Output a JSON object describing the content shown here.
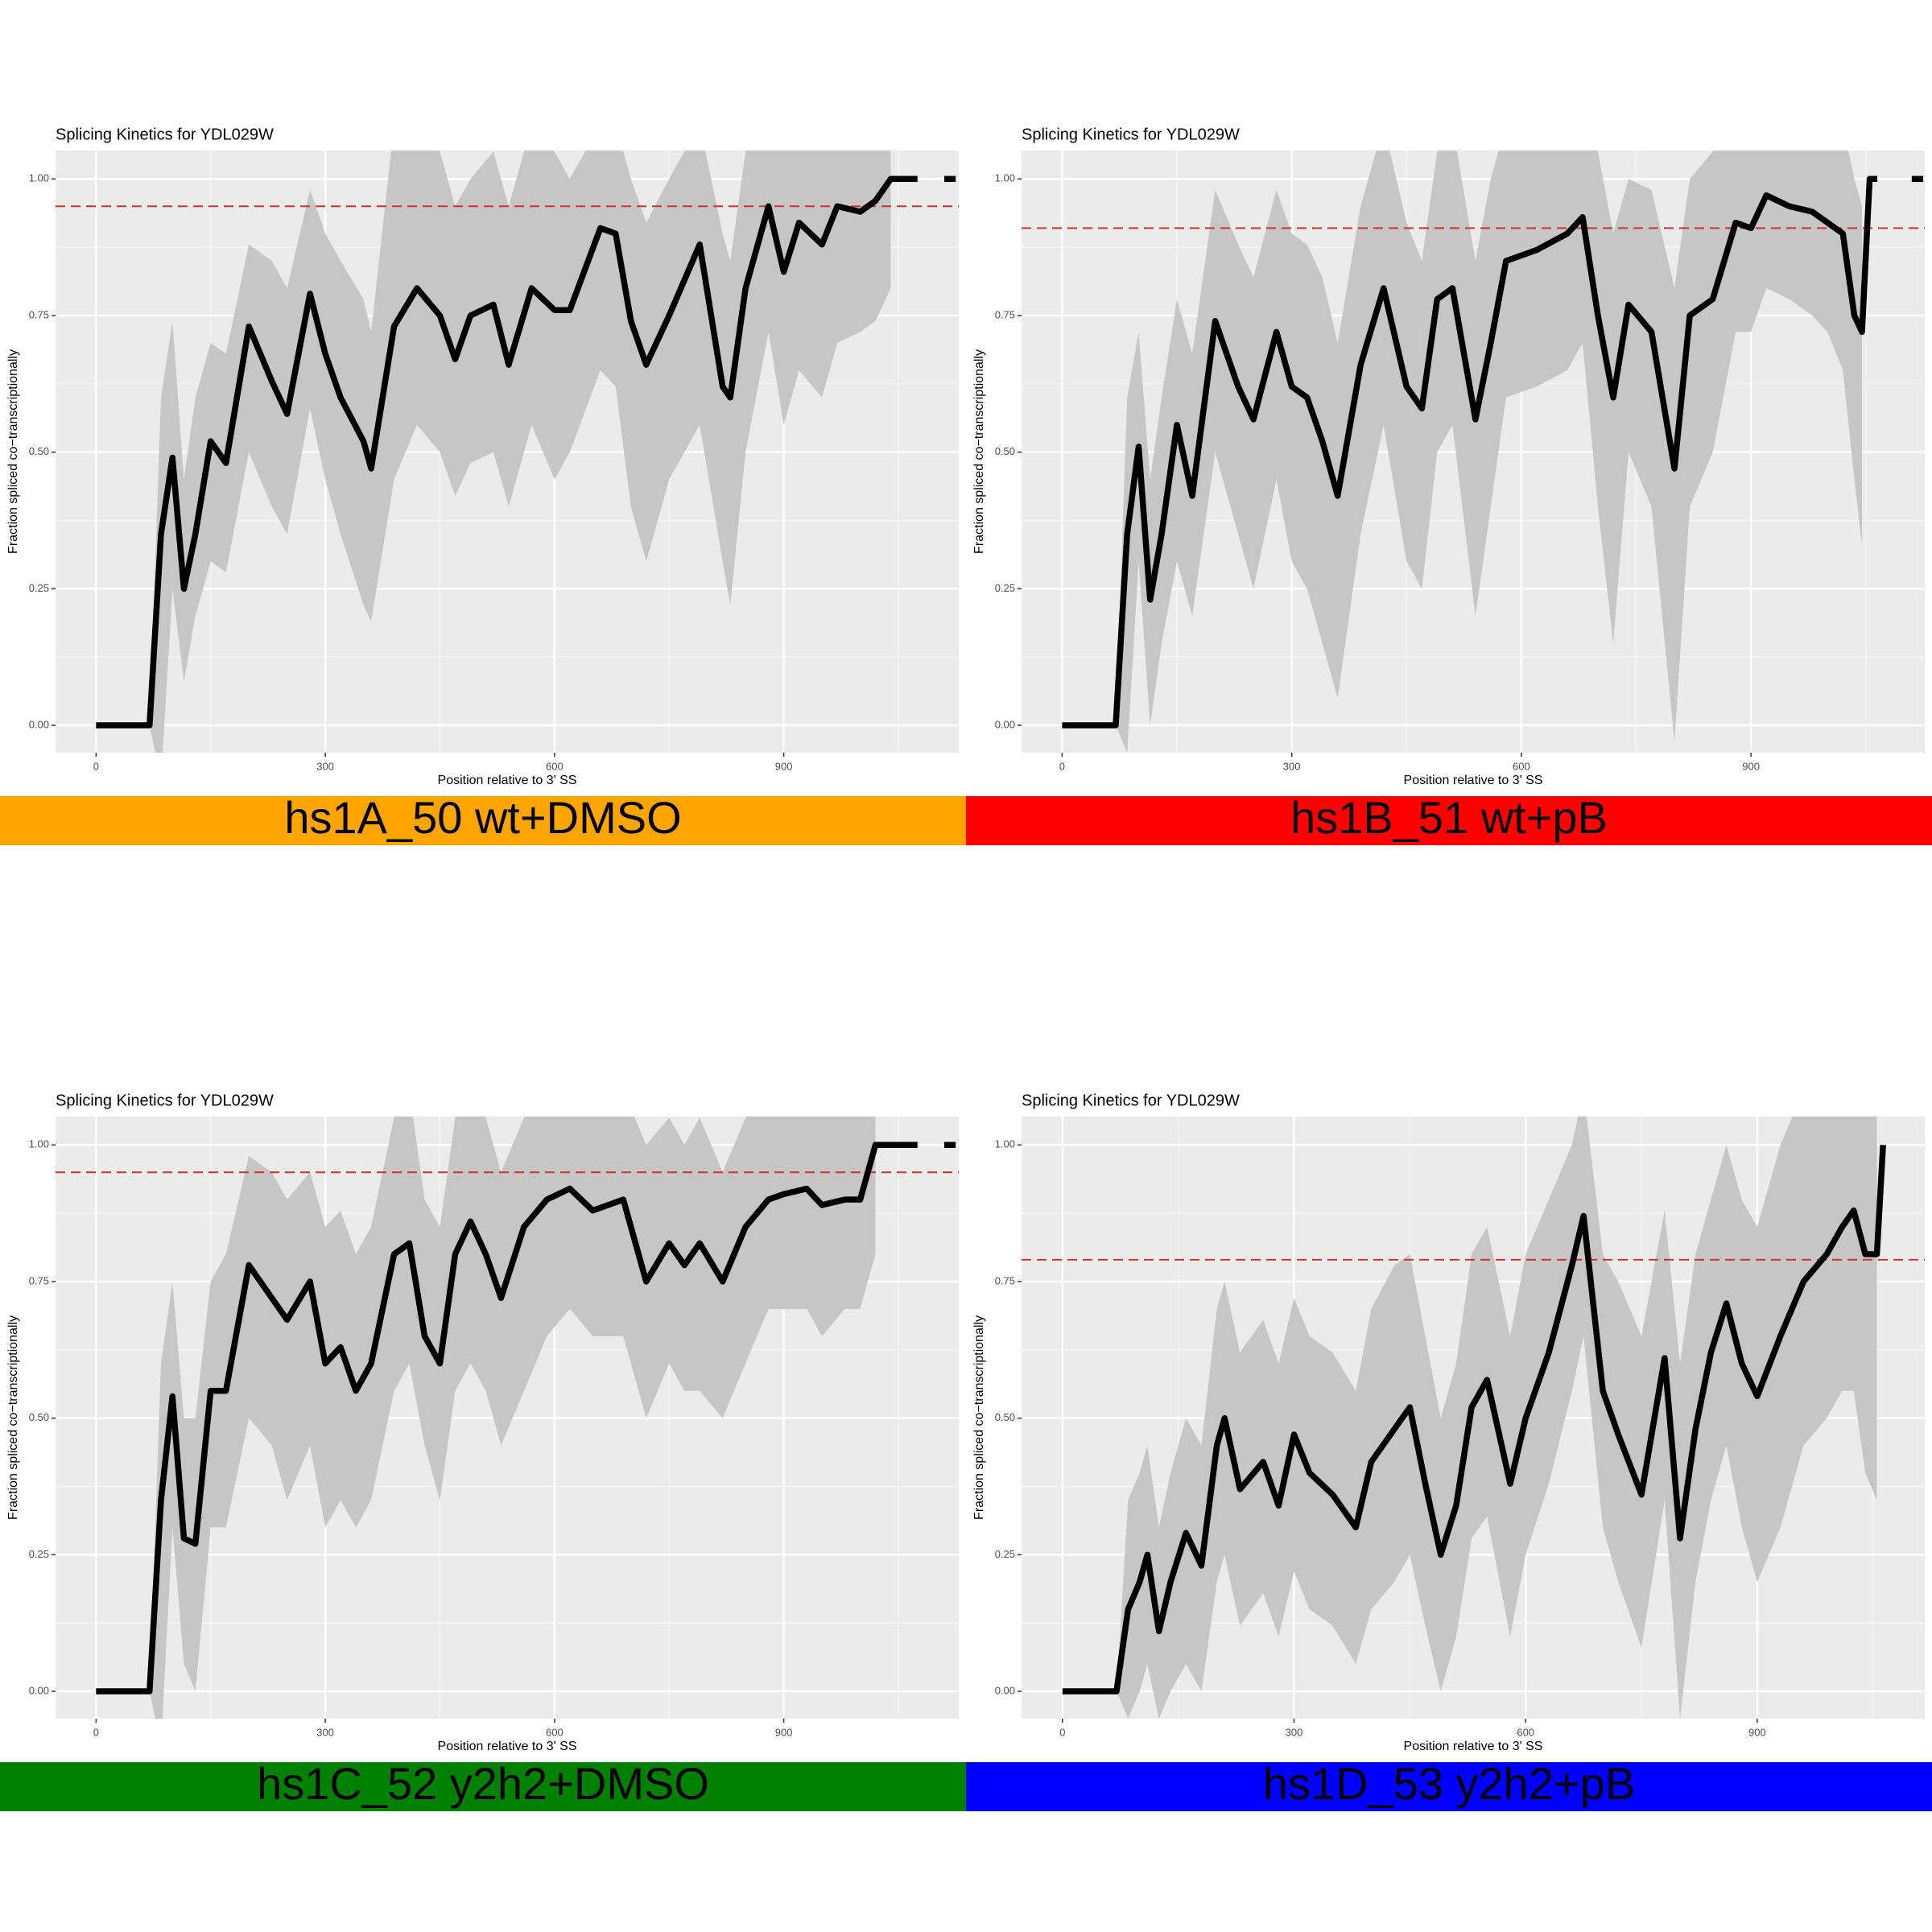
{
  "chart_data": [
    {
      "type": "line",
      "title": "Splicing Kinetics for YDL029W",
      "xlabel": "Position relative to 3' SS",
      "ylabel": "Fraction spliced co−transcriptionally",
      "caption": "hs1A_50 wt+DMSO",
      "caption_color": "#ffa500",
      "xlim": [
        -53,
        1129
      ],
      "ylim": [
        -0.05,
        1.052
      ],
      "xticks": [
        0,
        300,
        600,
        900
      ],
      "yticks": [
        {
          "value": 0,
          "label": "0.00"
        },
        {
          "value": 0.25,
          "label": "0.25"
        },
        {
          "value": 0.5,
          "label": "0.50"
        },
        {
          "value": 0.75,
          "label": "0.75"
        },
        {
          "value": 1,
          "label": "1.00"
        }
      ],
      "xminor": [
        150,
        450,
        750,
        1050
      ],
      "yminor": [
        0.125,
        0.375,
        0.625,
        0.875
      ],
      "grid": true,
      "color": "#000000",
      "ribbon_color": "#c6c6c6",
      "hline": 0.95,
      "hline_color": "#cc3333",
      "x": [
        0,
        70,
        85,
        100,
        115,
        130,
        150,
        170,
        200,
        230,
        250,
        280,
        300,
        320,
        350,
        360,
        390,
        420,
        450,
        470,
        490,
        520,
        540,
        570,
        600,
        620,
        660,
        680,
        700,
        720,
        750,
        790,
        820,
        830,
        850,
        880,
        900,
        920,
        950,
        970,
        1000,
        1020,
        1040,
        1075,
        1090,
        1110,
        1125
      ],
      "values": [
        0,
        0,
        0.35,
        0.49,
        0.25,
        0.35,
        0.52,
        0.48,
        0.73,
        0.63,
        0.57,
        0.79,
        0.68,
        0.6,
        0.52,
        0.47,
        0.73,
        0.8,
        0.75,
        0.67,
        0.75,
        0.77,
        0.66,
        0.8,
        0.76,
        0.76,
        0.91,
        0.9,
        0.74,
        0.66,
        0.75,
        0.88,
        0.62,
        0.6,
        0.8,
        0.95,
        0.83,
        0.92,
        0.88,
        0.95,
        0.94,
        0.96,
        1.0,
        1.0,
        null,
        1.0,
        1.0
      ],
      "ribbon_lower": [
        0,
        0,
        -0.1,
        0.25,
        0.08,
        0.2,
        0.3,
        0.28,
        0.5,
        0.4,
        0.35,
        0.58,
        0.45,
        0.35,
        0.22,
        0.19,
        0.45,
        0.55,
        0.5,
        0.42,
        0.48,
        0.5,
        0.4,
        0.55,
        0.45,
        0.5,
        0.65,
        0.62,
        0.4,
        0.3,
        0.45,
        0.55,
        0.3,
        0.22,
        0.5,
        0.72,
        0.55,
        0.65,
        0.6,
        0.7,
        0.72,
        0.74,
        0.8,
        null,
        null,
        null,
        null
      ],
      "ribbon_upper": [
        0,
        0,
        0.6,
        0.74,
        0.45,
        0.6,
        0.7,
        0.68,
        0.88,
        0.85,
        0.8,
        0.98,
        0.9,
        0.85,
        0.78,
        0.72,
        1.1,
        1.1,
        1.05,
        0.95,
        1.0,
        1.05,
        0.95,
        1.1,
        1.05,
        1.0,
        1.1,
        1.1,
        1.0,
        0.92,
        1.0,
        1.1,
        0.9,
        0.85,
        1.05,
        1.1,
        1.1,
        1.1,
        1.1,
        1.1,
        1.1,
        1.1,
        1.1,
        null,
        null,
        null,
        null
      ]
    },
    {
      "type": "line",
      "title": "Splicing Kinetics for YDL029W",
      "xlabel": "Position relative to 3' SS",
      "ylabel": "Fraction spliced co−transcriptionally",
      "caption": "hs1B_51 wt+pB",
      "caption_color": "#ff0000",
      "xlim": [
        -53,
        1127
      ],
      "ylim": [
        -0.05,
        1.052
      ],
      "xticks": [
        0,
        300,
        600,
        900
      ],
      "yticks": [
        {
          "value": 0,
          "label": "0.00"
        },
        {
          "value": 0.25,
          "label": "0.25"
        },
        {
          "value": 0.5,
          "label": "0.50"
        },
        {
          "value": 0.75,
          "label": "0.75"
        },
        {
          "value": 1,
          "label": "1.00"
        }
      ],
      "xminor": [
        150,
        450,
        750,
        1050
      ],
      "yminor": [
        0.125,
        0.375,
        0.625,
        0.875
      ],
      "grid": true,
      "color": "#000000",
      "ribbon_color": "#c6c6c6",
      "hline": 0.91,
      "hline_color": "#cc3333",
      "x": [
        0,
        70,
        85,
        100,
        115,
        130,
        150,
        170,
        200,
        230,
        250,
        280,
        300,
        320,
        340,
        360,
        390,
        420,
        450,
        470,
        490,
        510,
        540,
        560,
        580,
        620,
        660,
        680,
        700,
        720,
        740,
        770,
        800,
        820,
        850,
        880,
        900,
        920,
        950,
        980,
        1000,
        1020,
        1035,
        1045,
        1055,
        1065,
        1090,
        1110,
        1125
      ],
      "values": [
        0,
        0,
        0.35,
        0.51,
        0.23,
        0.35,
        0.55,
        0.42,
        0.74,
        0.62,
        0.56,
        0.72,
        0.62,
        0.6,
        0.52,
        0.42,
        0.66,
        0.8,
        0.62,
        0.58,
        0.78,
        0.8,
        0.56,
        0.7,
        0.85,
        0.87,
        0.9,
        0.93,
        0.75,
        0.6,
        0.77,
        0.72,
        0.47,
        0.75,
        0.78,
        0.92,
        0.91,
        0.97,
        0.95,
        0.94,
        0.92,
        0.9,
        0.75,
        0.72,
        1.0,
        1.0,
        null,
        1.0,
        1.0
      ],
      "ribbon_lower": [
        0,
        0,
        -0.05,
        0.3,
        0.0,
        0.15,
        0.3,
        0.2,
        0.5,
        0.35,
        0.25,
        0.45,
        0.3,
        0.25,
        0.15,
        0.05,
        0.35,
        0.55,
        0.3,
        0.25,
        0.5,
        0.55,
        0.2,
        0.4,
        0.6,
        0.62,
        0.65,
        0.7,
        0.4,
        0.15,
        0.5,
        0.4,
        -0.03,
        0.4,
        0.5,
        0.72,
        0.72,
        0.8,
        0.78,
        0.75,
        0.72,
        0.65,
        0.45,
        0.33,
        null,
        null,
        null,
        null,
        null
      ],
      "ribbon_upper": [
        0,
        0,
        0.6,
        0.72,
        0.45,
        0.6,
        0.78,
        0.68,
        0.98,
        0.88,
        0.82,
        0.98,
        0.9,
        0.88,
        0.82,
        0.7,
        0.95,
        1.1,
        0.92,
        0.85,
        1.05,
        1.1,
        0.85,
        1.0,
        1.1,
        1.1,
        1.1,
        1.1,
        1.05,
        0.9,
        1.0,
        0.98,
        0.8,
        1.0,
        1.05,
        1.1,
        1.1,
        1.1,
        1.1,
        1.1,
        1.1,
        1.1,
        1.0,
        0.95,
        null,
        null,
        null,
        null,
        null
      ]
    },
    {
      "type": "line",
      "title": "Splicing Kinetics for YDL029W",
      "xlabel": "Position relative to 3' SS",
      "ylabel": "Fraction spliced co−transcriptionally",
      "caption": "hs1C_52 y2h2+DMSO",
      "caption_color": "#008000",
      "xlim": [
        -53,
        1129
      ],
      "ylim": [
        -0.05,
        1.052
      ],
      "xticks": [
        0,
        300,
        600,
        900
      ],
      "yticks": [
        {
          "value": 0,
          "label": "0.00"
        },
        {
          "value": 0.25,
          "label": "0.25"
        },
        {
          "value": 0.5,
          "label": "0.50"
        },
        {
          "value": 0.75,
          "label": "0.75"
        },
        {
          "value": 1,
          "label": "1.00"
        }
      ],
      "xminor": [
        150,
        450,
        750,
        1050
      ],
      "yminor": [
        0.125,
        0.375,
        0.625,
        0.875
      ],
      "grid": true,
      "color": "#000000",
      "ribbon_color": "#c6c6c6",
      "hline": 0.95,
      "hline_color": "#cc3333",
      "x": [
        0,
        70,
        85,
        100,
        115,
        130,
        150,
        170,
        200,
        230,
        250,
        280,
        300,
        320,
        340,
        360,
        390,
        410,
        430,
        450,
        470,
        490,
        510,
        530,
        560,
        590,
        620,
        650,
        690,
        720,
        750,
        770,
        790,
        820,
        850,
        880,
        900,
        930,
        950,
        980,
        1000,
        1010,
        1020,
        1075,
        1090,
        1110,
        1125
      ],
      "values": [
        0,
        0,
        0.35,
        0.54,
        0.28,
        0.27,
        0.55,
        0.55,
        0.78,
        0.72,
        0.68,
        0.75,
        0.6,
        0.63,
        0.55,
        0.6,
        0.8,
        0.82,
        0.65,
        0.6,
        0.8,
        0.86,
        0.8,
        0.72,
        0.85,
        0.9,
        0.92,
        0.88,
        0.9,
        0.75,
        0.82,
        0.78,
        0.82,
        0.75,
        0.85,
        0.9,
        0.91,
        0.92,
        0.89,
        0.9,
        0.9,
        0.95,
        1.0,
        1.0,
        null,
        1.0,
        1.0
      ],
      "ribbon_lower": [
        0,
        0,
        -0.1,
        0.3,
        0.05,
        0.0,
        0.3,
        0.3,
        0.5,
        0.45,
        0.35,
        0.45,
        0.3,
        0.35,
        0.3,
        0.35,
        0.55,
        0.6,
        0.45,
        0.35,
        0.55,
        0.6,
        0.55,
        0.45,
        0.55,
        0.65,
        0.7,
        0.65,
        0.65,
        0.5,
        0.6,
        0.55,
        0.55,
        0.5,
        0.6,
        0.7,
        0.7,
        0.7,
        0.65,
        0.7,
        0.7,
        0.75,
        0.8,
        null,
        null,
        null,
        null
      ],
      "ribbon_upper": [
        0,
        0,
        0.6,
        0.75,
        0.5,
        0.5,
        0.75,
        0.8,
        0.98,
        0.95,
        0.9,
        0.95,
        0.85,
        0.88,
        0.8,
        0.85,
        1.05,
        1.1,
        0.9,
        0.85,
        1.05,
        1.1,
        1.05,
        0.95,
        1.05,
        1.1,
        1.1,
        1.1,
        1.1,
        1.0,
        1.05,
        1.0,
        1.05,
        0.95,
        1.05,
        1.1,
        1.1,
        1.1,
        1.1,
        1.1,
        1.1,
        1.1,
        1.1,
        null,
        null,
        null,
        null
      ]
    },
    {
      "type": "line",
      "title": "Splicing Kinetics for YDL029W",
      "xlabel": "Position relative to 3' SS",
      "ylabel": "Fraction spliced co−transcriptionally",
      "caption": "hs1D_53 y2h2+pB",
      "caption_color": "#0000ff",
      "xlim": [
        -53,
        1117
      ],
      "ylim": [
        -0.05,
        1.052
      ],
      "xticks": [
        0,
        300,
        600,
        900
      ],
      "yticks": [
        {
          "value": 0,
          "label": "0.00"
        },
        {
          "value": 0.25,
          "label": "0.25"
        },
        {
          "value": 0.5,
          "label": "0.50"
        },
        {
          "value": 0.75,
          "label": "0.75"
        },
        {
          "value": 1,
          "label": "1.00"
        }
      ],
      "xminor": [
        150,
        450,
        750,
        1050
      ],
      "yminor": [
        0.125,
        0.375,
        0.625,
        0.875
      ],
      "grid": true,
      "color": "#000000",
      "ribbon_color": "#c6c6c6",
      "hline": 0.79,
      "hline_color": "#cc3333",
      "x": [
        0,
        70,
        85,
        100,
        110,
        125,
        140,
        160,
        180,
        200,
        210,
        230,
        260,
        280,
        300,
        320,
        350,
        380,
        400,
        430,
        450,
        470,
        490,
        510,
        530,
        550,
        580,
        600,
        630,
        660,
        675,
        700,
        720,
        750,
        780,
        800,
        820,
        840,
        860,
        880,
        900,
        930,
        960,
        990,
        1010,
        1025,
        1040,
        1055,
        1063
      ],
      "values": [
        0,
        0,
        0.15,
        0.2,
        0.25,
        0.11,
        0.2,
        0.29,
        0.23,
        0.45,
        0.5,
        0.37,
        0.42,
        0.34,
        0.47,
        0.4,
        0.36,
        0.3,
        0.42,
        0.48,
        0.52,
        0.38,
        0.25,
        0.34,
        0.52,
        0.57,
        0.38,
        0.5,
        0.62,
        0.78,
        0.87,
        0.55,
        0.47,
        0.36,
        0.61,
        0.28,
        0.48,
        0.62,
        0.71,
        0.6,
        0.54,
        0.65,
        0.75,
        0.8,
        0.85,
        0.88,
        0.8,
        0.8,
        1.0
      ],
      "ribbon_lower": [
        0,
        0,
        -0.05,
        0.0,
        0.05,
        -0.05,
        0.0,
        0.05,
        0.0,
        0.2,
        0.25,
        0.12,
        0.18,
        0.1,
        0.22,
        0.15,
        0.12,
        0.05,
        0.15,
        0.2,
        0.25,
        0.12,
        0.0,
        0.1,
        0.28,
        0.32,
        0.1,
        0.25,
        0.38,
        0.55,
        0.65,
        0.3,
        0.2,
        0.08,
        0.35,
        -0.05,
        0.2,
        0.35,
        0.45,
        0.3,
        0.2,
        0.3,
        0.45,
        0.5,
        0.55,
        0.55,
        0.4,
        0.35,
        null
      ],
      "ribbon_upper": [
        0,
        0,
        0.35,
        0.4,
        0.45,
        0.3,
        0.4,
        0.5,
        0.45,
        0.7,
        0.75,
        0.62,
        0.68,
        0.6,
        0.72,
        0.65,
        0.62,
        0.55,
        0.7,
        0.78,
        0.8,
        0.65,
        0.5,
        0.6,
        0.8,
        0.85,
        0.65,
        0.8,
        0.9,
        1.0,
        1.1,
        0.8,
        0.75,
        0.65,
        0.88,
        0.6,
        0.8,
        0.9,
        1.0,
        0.9,
        0.85,
        1.0,
        1.1,
        1.1,
        1.1,
        1.1,
        1.1,
        1.1,
        null
      ]
    }
  ]
}
